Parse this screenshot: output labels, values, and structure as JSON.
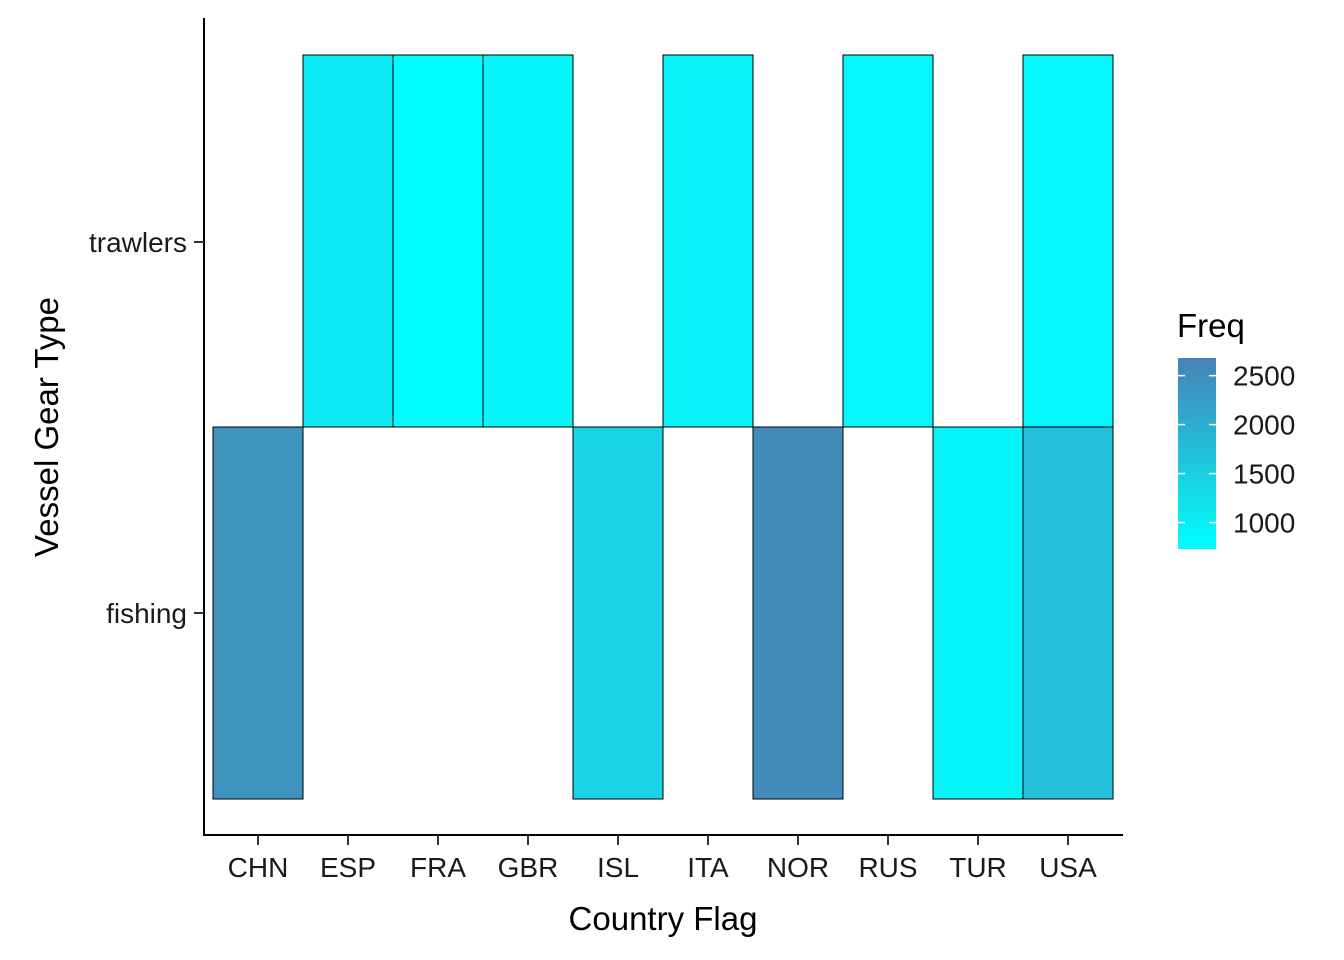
{
  "chart_data": {
    "type": "heatmap",
    "x_categories": [
      "CHN",
      "ESP",
      "FRA",
      "GBR",
      "ISL",
      "ITA",
      "NOR",
      "RUS",
      "TUR",
      "USA"
    ],
    "y_categories": [
      "fishing",
      "trawlers"
    ],
    "xlabel": "Country Flag",
    "ylabel": "Vessel Gear Type",
    "cells": [
      {
        "x": "CHN",
        "y": "fishing",
        "value": 2400
      },
      {
        "x": "ISL",
        "y": "fishing",
        "value": 1400
      },
      {
        "x": "NOR",
        "y": "fishing",
        "value": 2550
      },
      {
        "x": "TUR",
        "y": "fishing",
        "value": 900
      },
      {
        "x": "USA",
        "y": "fishing",
        "value": 1700
      },
      {
        "x": "ESP",
        "y": "trawlers",
        "value": 1050
      },
      {
        "x": "FRA",
        "y": "trawlers",
        "value": 750
      },
      {
        "x": "GBR",
        "y": "trawlers",
        "value": 880
      },
      {
        "x": "ITA",
        "y": "trawlers",
        "value": 950
      },
      {
        "x": "RUS",
        "y": "trawlers",
        "value": 850
      },
      {
        "x": "USA",
        "y": "trawlers",
        "value": 850
      }
    ],
    "legend": {
      "title": "Freq",
      "ticks": [
        "2500",
        "2000",
        "1500",
        "1000"
      ],
      "tick_values": [
        2500,
        2000,
        1500,
        1000
      ],
      "min": 730,
      "max": 2680,
      "low_color": "#00FFFF",
      "high_color": "#4682B4",
      "placement": "right"
    },
    "grid": false
  }
}
